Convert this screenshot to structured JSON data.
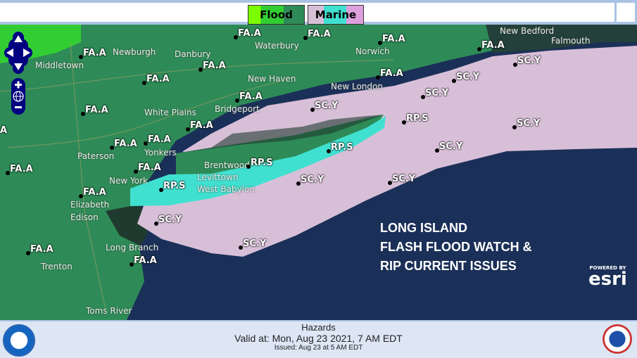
{
  "legend": {
    "flood_label": "Flood",
    "marine_label": "Marine"
  },
  "colors": {
    "land": "#2e8b57",
    "ocean": "#1b3058",
    "marine_scy": "#d8bfd8",
    "rip_current": "#40e0d0",
    "flood_watch_light": "#32cd32"
  },
  "hazards": [
    "FA.A",
    "FA.A",
    "FA.A",
    "FA.A",
    "FA.A",
    "FA.A",
    "FA.A",
    "FA.A",
    "FA.A",
    "FA.A",
    "FA.A",
    "FA.A",
    "FA.A",
    "FA.A",
    "FA.A",
    "FA.A",
    "FA.A",
    "FA.A",
    "A",
    "SC.Y",
    "SC.Y",
    "SC.Y",
    "SC.Y",
    "SC.Y",
    "SC.Y",
    "SC.Y",
    "SC.Y",
    "SC.Y",
    "SC.Y",
    "RP.S",
    "RP.S",
    "RP.S",
    "RP.S"
  ],
  "cities": [
    "Newburgh",
    "Middletown",
    "Waterbury",
    "Norwich",
    "New Bedford",
    "Falmouth",
    "Danbury",
    "New Haven",
    "New London",
    "Bridgeport",
    "White Plains",
    "Paterson",
    "Yonkers",
    "New York",
    "Levittown",
    "West Babylon",
    "Brentwood",
    "Elizabeth",
    "Edison",
    "Long Branch",
    "Trenton",
    "Toms River"
  ],
  "headline": [
    "LONG ISLAND",
    "FLASH FLOOD WATCH &",
    "RIP CURRENT ISSUES"
  ],
  "esri": {
    "powered": "POWERED BY",
    "name": "esri"
  },
  "footer": {
    "title": "Hazards",
    "valid": "Valid at: Mon, Aug 23 2021,   7 AM EDT",
    "issued": "Issued: Aug 23 at 5 AM EDT"
  }
}
